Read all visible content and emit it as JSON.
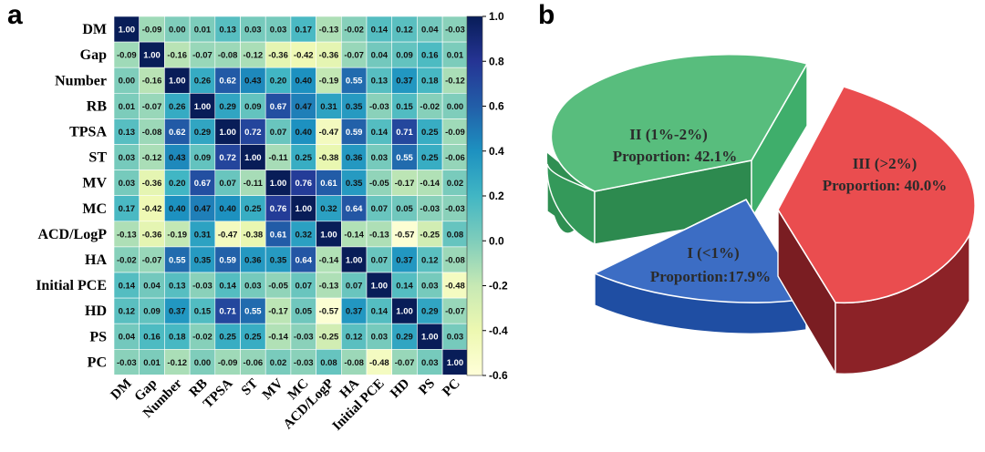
{
  "chart_data": [
    {
      "type": "heatmap",
      "panel": "a",
      "labels": [
        "DM",
        "Gap",
        "Number",
        "RB",
        "TPSA",
        "ST",
        "MV",
        "MC",
        "ACD/LogP",
        "HA",
        "Initial PCE",
        "HD",
        "PS",
        "PC"
      ],
      "values": [
        [
          "1.00",
          "-0.09",
          "0.00",
          "0.01",
          "0.13",
          "0.03",
          "0.03",
          "0.17",
          "-0.13",
          "-0.02",
          "0.14",
          "0.12",
          "0.04",
          "-0.03"
        ],
        [
          "-0.09",
          "1.00",
          "-0.16",
          "-0.07",
          "-0.08",
          "-0.12",
          "-0.36",
          "-0.42",
          "-0.36",
          "-0.07",
          "0.04",
          "0.09",
          "0.16",
          "0.01"
        ],
        [
          "0.00",
          "-0.16",
          "1.00",
          "0.26",
          "0.62",
          "0.43",
          "0.20",
          "0.40",
          "-0.19",
          "0.55",
          "0.13",
          "0.37",
          "0.18",
          "-0.12"
        ],
        [
          "0.01",
          "-0.07",
          "0.26",
          "1.00",
          "0.29",
          "0.09",
          "0.67",
          "0.47",
          "0.31",
          "0.35",
          "-0.03",
          "0.15",
          "-0.02",
          "0.00"
        ],
        [
          "0.13",
          "-0.08",
          "0.62",
          "0.29",
          "1.00",
          "0.72",
          "0.07",
          "0.40",
          "-0.47",
          "0.59",
          "0.14",
          "0.71",
          "0.25",
          "-0.09"
        ],
        [
          "0.03",
          "-0.12",
          "0.43",
          "0.09",
          "0.72",
          "1.00",
          "-0.11",
          "0.25",
          "-0.38",
          "0.36",
          "0.03",
          "0.55",
          "0.25",
          "-0.06"
        ],
        [
          "0.03",
          "-0.36",
          "0.20",
          "0.67",
          "0.07",
          "-0.11",
          "1.00",
          "0.76",
          "0.61",
          "0.35",
          "-0.05",
          "-0.17",
          "-0.14",
          "0.02"
        ],
        [
          "0.17",
          "-0.42",
          "0.40",
          "0.47",
          "0.40",
          "0.25",
          "0.76",
          "1.00",
          "0.32",
          "0.64",
          "0.07",
          "0.05",
          "-0.03",
          "-0.03"
        ],
        [
          "-0.13",
          "-0.36",
          "-0.19",
          "0.31",
          "-0.47",
          "-0.38",
          "0.61",
          "0.32",
          "1.00",
          "-0.14",
          "-0.13",
          "-0.57",
          "-0.25",
          "0.08"
        ],
        [
          "-0.02",
          "-0.07",
          "0.55",
          "0.35",
          "0.59",
          "0.36",
          "0.35",
          "0.64",
          "-0.14",
          "1.00",
          "0.07",
          "0.37",
          "0.12",
          "-0.08"
        ],
        [
          "0.14",
          "0.04",
          "0.13",
          "-0.03",
          "0.14",
          "0.03",
          "-0.05",
          "0.07",
          "-0.13",
          "0.07",
          "1.00",
          "0.14",
          "0.03",
          "-0.48"
        ],
        [
          "0.12",
          "0.09",
          "0.37",
          "0.15",
          "0.71",
          "0.55",
          "-0.17",
          "0.05",
          "-0.57",
          "0.37",
          "0.14",
          "1.00",
          "0.29",
          "-0.07"
        ],
        [
          "0.04",
          "0.16",
          "0.18",
          "-0.02",
          "0.25",
          "0.25",
          "-0.14",
          "-0.03",
          "-0.25",
          "0.12",
          "0.03",
          "0.29",
          "1.00",
          "0.03"
        ],
        [
          "-0.03",
          "0.01",
          "-0.12",
          "0.00",
          "-0.09",
          "-0.06",
          "0.02",
          "-0.03",
          "0.08",
          "-0.08",
          "-0.48",
          "-0.07",
          "0.03",
          "1.00"
        ]
      ],
      "colorbar": {
        "range": [
          -0.6,
          1.0
        ],
        "ticks": [
          "1.0",
          "0.8",
          "0.6",
          "0.4",
          "0.2",
          "0.0",
          "-0.2",
          "-0.4",
          "-0.6"
        ],
        "colormap": [
          "#ffffd9",
          "#edf8b1",
          "#c7e9b4",
          "#7fcdbb",
          "#41b6c4",
          "#1d91c0",
          "#225ea8",
          "#253494",
          "#081d58"
        ]
      }
    },
    {
      "type": "pie",
      "panel": "b",
      "slices": [
        {
          "label": "II (1%-2%)",
          "proportion_text": "Proportion: 42.1%",
          "value": 42.1,
          "color": "#3aa664"
        },
        {
          "label": "III (>2%)",
          "proportion_text": "Proportion: 40.0%",
          "value": 40.0,
          "color": "#e94a4a"
        },
        {
          "label": "I (<1%)",
          "proportion_text": "Proportion:17.9%",
          "value": 17.9,
          "color": "#2e62bd"
        }
      ]
    }
  ]
}
